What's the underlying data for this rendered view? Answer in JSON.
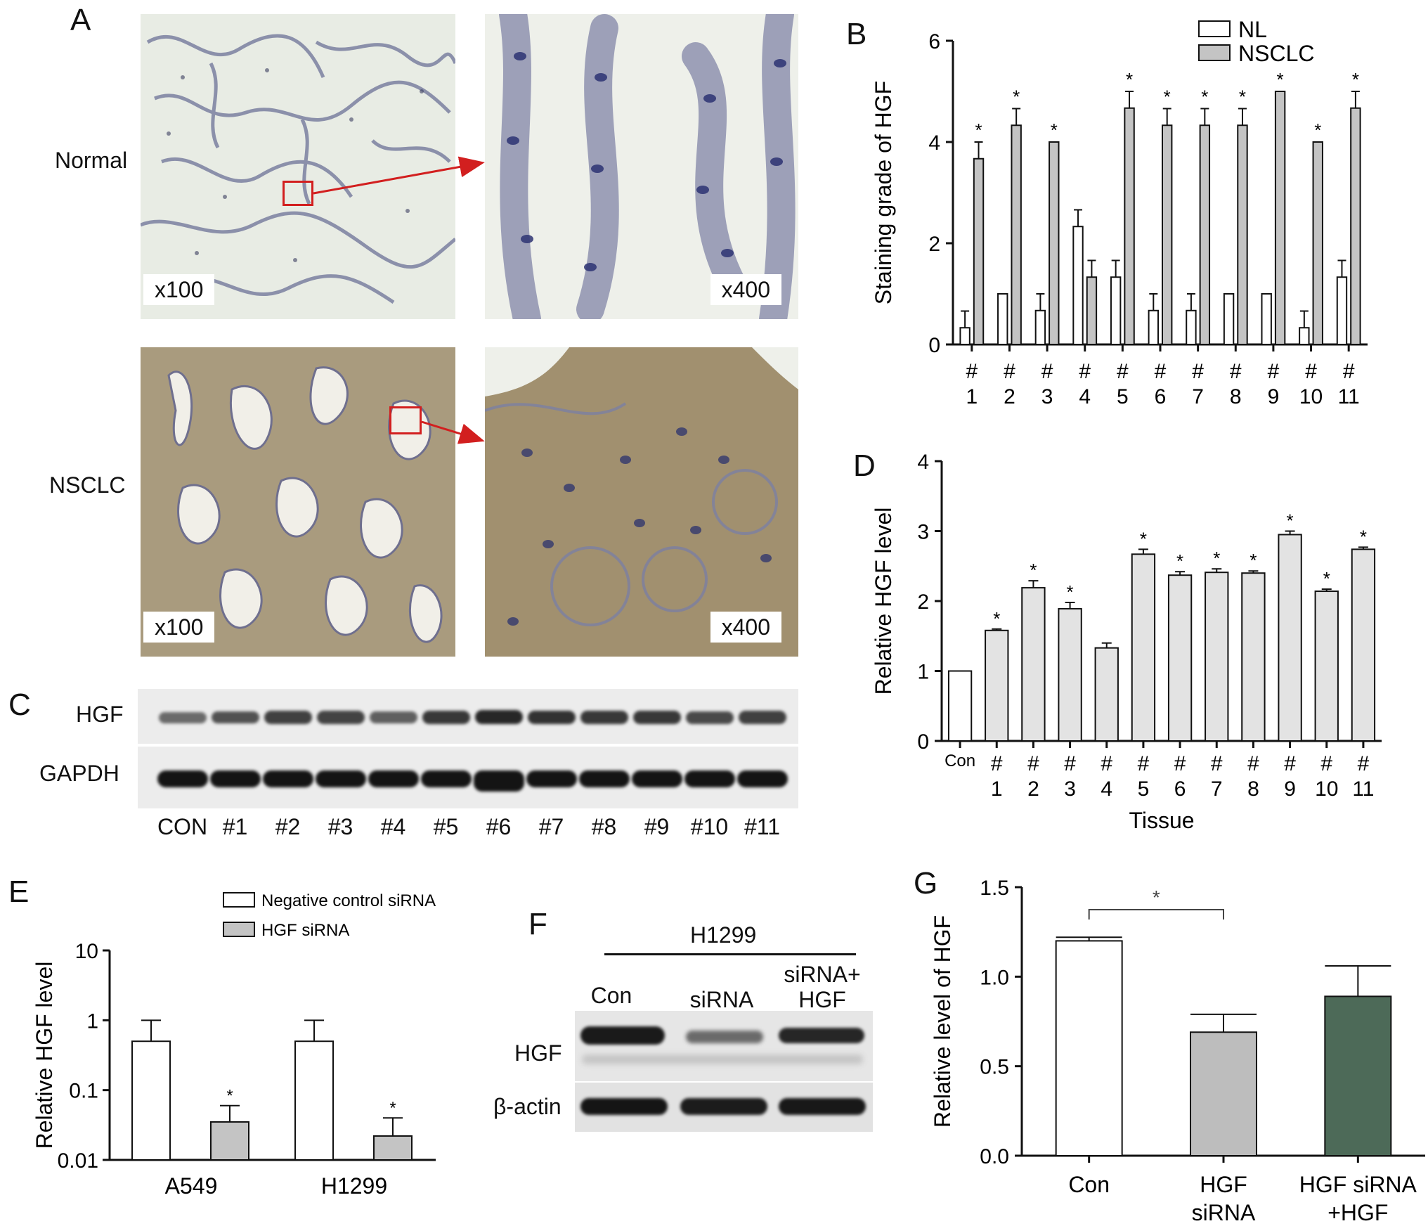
{
  "panels": {
    "a": {
      "letter": "A",
      "row_labels": [
        "Normal",
        "NSCLC"
      ],
      "magnifications": [
        "x100",
        "x400",
        "x100",
        "x400"
      ]
    },
    "b": {
      "letter": "B"
    },
    "c": {
      "letter": "C",
      "row_labels": [
        "HGF",
        "GAPDH"
      ],
      "lanes": [
        "CON",
        "#1",
        "#2",
        "#3",
        "#4",
        "#5",
        "#6",
        "#7",
        "#8",
        "#9",
        "#10",
        "#11"
      ]
    },
    "d": {
      "letter": "D"
    },
    "e": {
      "letter": "E"
    },
    "f": {
      "letter": "F",
      "cell_line": "H1299",
      "lanes": [
        [
          "Con"
        ],
        [
          "siRNA"
        ],
        [
          "siRNA+",
          "HGF"
        ]
      ],
      "row_labels": [
        "HGF",
        "β-actin"
      ]
    },
    "g": {
      "letter": "G"
    }
  },
  "colors": {
    "nl_bar": "#ffffff",
    "nsclc_bar": "#c4c4c4",
    "d_bar": "#e3e3e3",
    "e_sirna_bar": "#c4c4c4",
    "g_sirna_bar": "#bdbdbd",
    "g_rescue_bar": "#4d6a58",
    "bracket_red": "#d21f1f"
  },
  "chart_data": [
    {
      "panel": "B",
      "type": "bar",
      "ylabel": "Staining grade of HGF",
      "ylim": [
        0,
        6
      ],
      "yticks": [
        0,
        2,
        4,
        6
      ],
      "categories": [
        [
          "#",
          "1"
        ],
        [
          "#",
          "2"
        ],
        [
          "#",
          "3"
        ],
        [
          "#",
          "4"
        ],
        [
          "#",
          "5"
        ],
        [
          "#",
          "6"
        ],
        [
          "#",
          "7"
        ],
        [
          "#",
          "8"
        ],
        [
          "#",
          "9"
        ],
        [
          "#",
          "10"
        ],
        [
          "#",
          "11"
        ]
      ],
      "legend": "top-right",
      "series": [
        {
          "name": "NL",
          "values": [
            0.33,
            1.0,
            0.67,
            2.33,
            1.33,
            0.67,
            0.67,
            1.0,
            1.0,
            0.33,
            1.33
          ],
          "errors": [
            0.33,
            0,
            0.33,
            0.33,
            0.33,
            0.33,
            0.33,
            0,
            0,
            0.33,
            0.33
          ]
        },
        {
          "name": "NSCLC",
          "values": [
            3.67,
            4.33,
            4.0,
            1.33,
            4.67,
            4.33,
            4.33,
            4.33,
            5.0,
            4.0,
            4.67
          ],
          "errors": [
            0.33,
            0.33,
            0,
            0.33,
            0.33,
            0.33,
            0.33,
            0.33,
            0,
            0,
            0.33
          ]
        }
      ],
      "significance": [
        "*",
        "*",
        "*",
        "",
        "*",
        "*",
        "*",
        "*",
        "*",
        "*",
        "*"
      ]
    },
    {
      "panel": "D",
      "type": "bar",
      "xlabel": "Tissue",
      "ylabel": "Relative HGF level",
      "ylim": [
        0,
        4
      ],
      "yticks": [
        0,
        1,
        2,
        3,
        4
      ],
      "categories": [
        [
          "Con"
        ],
        [
          "#",
          "1"
        ],
        [
          "#",
          "2"
        ],
        [
          "#",
          "3"
        ],
        [
          "#",
          "4"
        ],
        [
          "#",
          "5"
        ],
        [
          "#",
          "6"
        ],
        [
          "#",
          "7"
        ],
        [
          "#",
          "8"
        ],
        [
          "#",
          "9"
        ],
        [
          "#",
          "10"
        ],
        [
          "#",
          "11"
        ]
      ],
      "values": [
        1.0,
        1.58,
        2.19,
        1.89,
        1.33,
        2.67,
        2.37,
        2.41,
        2.4,
        2.95,
        2.14,
        2.74
      ],
      "errors": [
        0,
        0.02,
        0.1,
        0.09,
        0.07,
        0.07,
        0.05,
        0.05,
        0.03,
        0.05,
        0.03,
        0.03
      ],
      "significance": [
        "",
        "*",
        "*",
        "*",
        "",
        "*",
        "*",
        "*",
        "*",
        "*",
        "*",
        "*"
      ]
    },
    {
      "panel": "E",
      "type": "bar",
      "yscale": "log",
      "ylabel": "Relative HGF level",
      "ylim": [
        0.01,
        10
      ],
      "yticks": [
        "0.01",
        "0.1",
        "1",
        "10"
      ],
      "categories": [
        "A549",
        "H1299"
      ],
      "legend": "top-right",
      "series": [
        {
          "name": "Negative control siRNA",
          "values": [
            0.5,
            0.5
          ],
          "errors_upper": [
            1.0,
            1.0
          ]
        },
        {
          "name": "HGF siRNA",
          "values": [
            0.035,
            0.022
          ],
          "errors_upper": [
            0.06,
            0.04
          ]
        }
      ],
      "significance": [
        "*",
        "*"
      ]
    },
    {
      "panel": "G",
      "type": "bar",
      "ylabel": "Relative level of HGF",
      "ylim": [
        0,
        1.5
      ],
      "yticks": [
        "0.0",
        "0.5",
        "1.0",
        "1.5"
      ],
      "categories": [
        [
          "Con"
        ],
        [
          "HGF",
          "siRNA"
        ],
        [
          "HGF siRNA",
          "+HGF"
        ]
      ],
      "values": [
        1.2,
        0.69,
        0.89
      ],
      "errors": [
        0.02,
        0.1,
        0.17
      ],
      "comparison": {
        "from": 0,
        "to": 1,
        "label": "*"
      }
    }
  ]
}
